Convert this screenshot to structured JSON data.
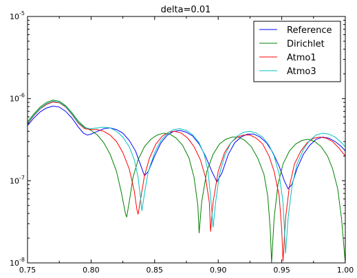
{
  "chart_data": {
    "type": "line",
    "title": "delta=0.01",
    "xlabel": "",
    "ylabel": "",
    "xscale": "linear",
    "yscale": "log",
    "xlim": [
      0.75,
      1.0
    ],
    "ylim": [
      1e-08,
      1e-05
    ],
    "grid": false,
    "legend_position": "top-right",
    "x_ticks": [
      0.75,
      0.8,
      0.85,
      0.9,
      0.95,
      1.0
    ],
    "x_tick_labels": [
      "0.75",
      "0.80",
      "0.85",
      "0.90",
      "0.95",
      "1.00"
    ],
    "y_ticks": [
      1e-08,
      1e-07,
      1e-06,
      1e-05
    ],
    "y_tick_labels": [
      {
        "base": "10",
        "exp": "-8"
      },
      {
        "base": "10",
        "exp": "-7"
      },
      {
        "base": "10",
        "exp": "-6"
      },
      {
        "base": "10",
        "exp": "-5"
      }
    ],
    "series": [
      {
        "name": "Reference",
        "color": "#0000ff",
        "points": [
          [
            0.75,
            4.7e-07
          ],
          [
            0.755,
            5.8e-07
          ],
          [
            0.76,
            6.9e-07
          ],
          [
            0.765,
            7.7e-07
          ],
          [
            0.77,
            8.1e-07
          ],
          [
            0.775,
            7.9e-07
          ],
          [
            0.78,
            7e-07
          ],
          [
            0.785,
            5.8e-07
          ],
          [
            0.79,
            4.5e-07
          ],
          [
            0.794,
            3.8e-07
          ],
          [
            0.797,
            3.6e-07
          ],
          [
            0.8,
            3.7e-07
          ],
          [
            0.805,
            4e-07
          ],
          [
            0.81,
            4.3e-07
          ],
          [
            0.815,
            4.4e-07
          ],
          [
            0.82,
            4.2e-07
          ],
          [
            0.825,
            3.8e-07
          ],
          [
            0.83,
            3.1e-07
          ],
          [
            0.835,
            2.3e-07
          ],
          [
            0.839,
            1.55e-07
          ],
          [
            0.842,
            1.15e-07
          ],
          [
            0.845,
            1.3e-07
          ],
          [
            0.85,
            2e-07
          ],
          [
            0.855,
            2.9e-07
          ],
          [
            0.86,
            3.6e-07
          ],
          [
            0.865,
            4e-07
          ],
          [
            0.87,
            4.1e-07
          ],
          [
            0.875,
            3.9e-07
          ],
          [
            0.88,
            3.5e-07
          ],
          [
            0.885,
            2.8e-07
          ],
          [
            0.89,
            2e-07
          ],
          [
            0.895,
            1.3e-07
          ],
          [
            0.899,
            9.7e-08
          ],
          [
            0.903,
            1.25e-07
          ],
          [
            0.908,
            2.1e-07
          ],
          [
            0.913,
            2.9e-07
          ],
          [
            0.918,
            3.4e-07
          ],
          [
            0.923,
            3.7e-07
          ],
          [
            0.928,
            3.7e-07
          ],
          [
            0.933,
            3.4e-07
          ],
          [
            0.938,
            2.9e-07
          ],
          [
            0.943,
            2.2e-07
          ],
          [
            0.948,
            1.5e-07
          ],
          [
            0.952,
            1e-07
          ],
          [
            0.955,
            8e-08
          ],
          [
            0.958,
            9e-08
          ],
          [
            0.962,
            1.4e-07
          ],
          [
            0.967,
            2.1e-07
          ],
          [
            0.972,
            2.7e-07
          ],
          [
            0.977,
            3.2e-07
          ],
          [
            0.982,
            3.4e-07
          ],
          [
            0.987,
            3.3e-07
          ],
          [
            0.992,
            3e-07
          ],
          [
            0.997,
            2.6e-07
          ],
          [
            1.0,
            2.3e-07
          ]
        ]
      },
      {
        "name": "Dirichlet",
        "color": "#008000",
        "points": [
          [
            0.75,
            5.2e-07
          ],
          [
            0.755,
            6.5e-07
          ],
          [
            0.76,
            7.9e-07
          ],
          [
            0.765,
            9e-07
          ],
          [
            0.77,
            9.6e-07
          ],
          [
            0.775,
            9.3e-07
          ],
          [
            0.78,
            8.2e-07
          ],
          [
            0.785,
            6.7e-07
          ],
          [
            0.79,
            5.3e-07
          ],
          [
            0.795,
            4.5e-07
          ],
          [
            0.8,
            4.1e-07
          ],
          [
            0.805,
            3.6e-07
          ],
          [
            0.81,
            2.9e-07
          ],
          [
            0.815,
            2.1e-07
          ],
          [
            0.82,
            1.3e-07
          ],
          [
            0.824,
            7e-08
          ],
          [
            0.827,
            4e-08
          ],
          [
            0.828,
            3.6e-08
          ],
          [
            0.83,
            5.5e-08
          ],
          [
            0.833,
            1.1e-07
          ],
          [
            0.837,
            1.8e-07
          ],
          [
            0.842,
            2.6e-07
          ],
          [
            0.847,
            3.2e-07
          ],
          [
            0.852,
            3.6e-07
          ],
          [
            0.857,
            3.8e-07
          ],
          [
            0.862,
            3.7e-07
          ],
          [
            0.867,
            3.3e-07
          ],
          [
            0.872,
            2.7e-07
          ],
          [
            0.877,
            1.9e-07
          ],
          [
            0.881,
            1.1e-07
          ],
          [
            0.884,
            5e-08
          ],
          [
            0.885,
            2.3e-08
          ],
          [
            0.887,
            5.5e-08
          ],
          [
            0.891,
            1.3e-07
          ],
          [
            0.896,
            2.1e-07
          ],
          [
            0.901,
            2.8e-07
          ],
          [
            0.906,
            3.2e-07
          ],
          [
            0.911,
            3.4e-07
          ],
          [
            0.916,
            3.4e-07
          ],
          [
            0.921,
            3.1e-07
          ],
          [
            0.926,
            2.6e-07
          ],
          [
            0.931,
            1.9e-07
          ],
          [
            0.936,
            1.2e-07
          ],
          [
            0.939,
            6.5e-08
          ],
          [
            0.941,
            2.5e-08
          ],
          [
            0.942,
            1e-08
          ],
          [
            0.944,
            3.5e-08
          ],
          [
            0.947,
            9e-08
          ],
          [
            0.951,
            1.6e-07
          ],
          [
            0.956,
            2.3e-07
          ],
          [
            0.961,
            2.8e-07
          ],
          [
            0.966,
            3.1e-07
          ],
          [
            0.971,
            3.2e-07
          ],
          [
            0.976,
            3e-07
          ],
          [
            0.981,
            2.6e-07
          ],
          [
            0.986,
            2e-07
          ],
          [
            0.99,
            1.4e-07
          ],
          [
            0.994,
            8e-08
          ],
          [
            0.997,
            3.5e-08
          ],
          [
            0.999,
            1.5e-08
          ],
          [
            1.0,
            1e-08
          ]
        ]
      },
      {
        "name": "Atmo1",
        "color": "#ff0000",
        "points": [
          [
            0.75,
            4.9e-07
          ],
          [
            0.755,
            6.2e-07
          ],
          [
            0.76,
            7.5e-07
          ],
          [
            0.765,
            8.5e-07
          ],
          [
            0.77,
            9.1e-07
          ],
          [
            0.775,
            8.9e-07
          ],
          [
            0.78,
            7.9e-07
          ],
          [
            0.785,
            6.4e-07
          ],
          [
            0.79,
            5e-07
          ],
          [
            0.795,
            4.3e-07
          ],
          [
            0.8,
            4.2e-07
          ],
          [
            0.805,
            4.2e-07
          ],
          [
            0.81,
            4e-07
          ],
          [
            0.815,
            3.6e-07
          ],
          [
            0.82,
            3e-07
          ],
          [
            0.825,
            2.2e-07
          ],
          [
            0.83,
            1.4e-07
          ],
          [
            0.834,
            7.5e-08
          ],
          [
            0.836,
            4.5e-08
          ],
          [
            0.837,
            3.9e-08
          ],
          [
            0.839,
            6e-08
          ],
          [
            0.842,
            1.15e-07
          ],
          [
            0.846,
            1.9e-07
          ],
          [
            0.851,
            2.8e-07
          ],
          [
            0.856,
            3.5e-07
          ],
          [
            0.861,
            3.9e-07
          ],
          [
            0.866,
            4e-07
          ],
          [
            0.871,
            3.8e-07
          ],
          [
            0.876,
            3.3e-07
          ],
          [
            0.881,
            2.6e-07
          ],
          [
            0.886,
            1.8e-07
          ],
          [
            0.89,
            1.1e-07
          ],
          [
            0.893,
            5.5e-08
          ],
          [
            0.894,
            2.4e-08
          ],
          [
            0.896,
            5.5e-08
          ],
          [
            0.9,
            1.3e-07
          ],
          [
            0.905,
            2.2e-07
          ],
          [
            0.91,
            2.9e-07
          ],
          [
            0.915,
            3.4e-07
          ],
          [
            0.92,
            3.6e-07
          ],
          [
            0.925,
            3.6e-07
          ],
          [
            0.93,
            3.3e-07
          ],
          [
            0.935,
            2.8e-07
          ],
          [
            0.94,
            2e-07
          ],
          [
            0.944,
            1.3e-07
          ],
          [
            0.948,
            6.5e-08
          ],
          [
            0.95,
            2.5e-08
          ],
          [
            0.951,
            1.05e-08
          ],
          [
            0.953,
            3.5e-08
          ],
          [
            0.956,
            8.5e-08
          ],
          [
            0.96,
            1.6e-07
          ],
          [
            0.965,
            2.3e-07
          ],
          [
            0.97,
            2.9e-07
          ],
          [
            0.975,
            3.3e-07
          ],
          [
            0.98,
            3.4e-07
          ],
          [
            0.985,
            3.3e-07
          ],
          [
            0.99,
            3e-07
          ],
          [
            0.995,
            2.5e-07
          ],
          [
            1.0,
            2e-07
          ]
        ]
      },
      {
        "name": "Atmo3",
        "color": "#00bfbf",
        "points": [
          [
            0.75,
            5e-07
          ],
          [
            0.755,
            6.3e-07
          ],
          [
            0.76,
            7.6e-07
          ],
          [
            0.765,
            8.7e-07
          ],
          [
            0.77,
            9.3e-07
          ],
          [
            0.775,
            9e-07
          ],
          [
            0.78,
            8e-07
          ],
          [
            0.785,
            6.5e-07
          ],
          [
            0.79,
            5.1e-07
          ],
          [
            0.795,
            4.4e-07
          ],
          [
            0.8,
            4.3e-07
          ],
          [
            0.805,
            4.4e-07
          ],
          [
            0.81,
            4.5e-07
          ],
          [
            0.815,
            4.4e-07
          ],
          [
            0.82,
            4e-07
          ],
          [
            0.825,
            3.4e-07
          ],
          [
            0.83,
            2.6e-07
          ],
          [
            0.834,
            1.8e-07
          ],
          [
            0.837,
            1.1e-07
          ],
          [
            0.839,
            6e-08
          ],
          [
            0.84,
            4.3e-08
          ],
          [
            0.842,
            7e-08
          ],
          [
            0.845,
            1.3e-07
          ],
          [
            0.85,
            2.2e-07
          ],
          [
            0.855,
            3.1e-07
          ],
          [
            0.86,
            3.8e-07
          ],
          [
            0.865,
            4.2e-07
          ],
          [
            0.87,
            4.3e-07
          ],
          [
            0.875,
            4.1e-07
          ],
          [
            0.88,
            3.6e-07
          ],
          [
            0.885,
            2.9e-07
          ],
          [
            0.889,
            2.1e-07
          ],
          [
            0.892,
            1.3e-07
          ],
          [
            0.894,
            6.5e-08
          ],
          [
            0.896,
            2.7e-08
          ],
          [
            0.898,
            5.5e-08
          ],
          [
            0.901,
            1.2e-07
          ],
          [
            0.905,
            2e-07
          ],
          [
            0.91,
            2.9e-07
          ],
          [
            0.915,
            3.5e-07
          ],
          [
            0.92,
            3.9e-07
          ],
          [
            0.925,
            4e-07
          ],
          [
            0.93,
            3.8e-07
          ],
          [
            0.935,
            3.4e-07
          ],
          [
            0.94,
            2.7e-07
          ],
          [
            0.944,
            2e-07
          ],
          [
            0.948,
            1.2e-07
          ],
          [
            0.951,
            5.5e-08
          ],
          [
            0.952,
            2.7e-08
          ],
          [
            0.953,
            1.3e-08
          ],
          [
            0.955,
            3.5e-08
          ],
          [
            0.958,
            8.5e-08
          ],
          [
            0.962,
            1.6e-07
          ],
          [
            0.967,
            2.4e-07
          ],
          [
            0.972,
            3.1e-07
          ],
          [
            0.977,
            3.6e-07
          ],
          [
            0.982,
            3.8e-07
          ],
          [
            0.987,
            3.7e-07
          ],
          [
            0.992,
            3.4e-07
          ],
          [
            0.997,
            2.9e-07
          ],
          [
            1.0,
            2.6e-07
          ]
        ]
      }
    ]
  }
}
